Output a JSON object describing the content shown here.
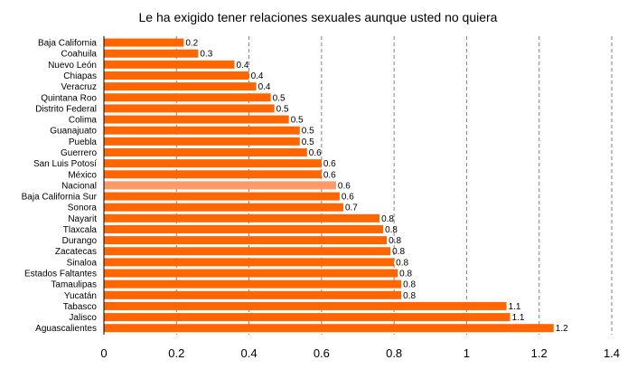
{
  "chart_data": {
    "type": "bar",
    "orientation": "horizontal",
    "title": "Le ha exigido tener relaciones sexuales aunque usted no quiera",
    "categories": [
      "Baja California",
      "Coahuila",
      "Nuevo León",
      "Chiapas",
      "Veracruz",
      "Quintana Roo",
      "Distrito Federal",
      "Colima",
      "Guanajuato",
      "Puebla",
      "Guerrero",
      "San Luis Potosí",
      "México",
      "Nacional",
      "Baja California Sur",
      "Sonora",
      "Nayarit",
      "Tlaxcala",
      "Durango",
      "Zacatecas",
      "Sinaloa",
      "Estados Faltantes",
      "Tamaulipas",
      "Yucatán",
      "Tabasco",
      "Jalisco",
      "Aguascalientes"
    ],
    "values": [
      0.22,
      0.26,
      0.36,
      0.4,
      0.42,
      0.46,
      0.47,
      0.51,
      0.54,
      0.54,
      0.56,
      0.6,
      0.6,
      0.64,
      0.65,
      0.66,
      0.76,
      0.77,
      0.78,
      0.79,
      0.8,
      0.81,
      0.82,
      0.82,
      1.11,
      1.12,
      1.24
    ],
    "value_labels": [
      "0.2",
      "0.3",
      "0.4",
      "0.4",
      "0.4",
      "0.5",
      "0.5",
      "0.5",
      "0.5",
      "0.5",
      "0.6",
      "0.6",
      "0.6",
      "0.6",
      "0.6",
      "0.7",
      "0.8",
      "0.8",
      "0.8",
      "0.8",
      "0.8",
      "0.8",
      "0.8",
      "0.8",
      "1.1",
      "1.1",
      "1.2"
    ],
    "highlight_category": "Nacional",
    "xlim": [
      0,
      1.4
    ],
    "xticks": [
      "0",
      "0.2",
      "0.4",
      "0.6",
      "0.8",
      "1",
      "1.2",
      "1.4"
    ],
    "grid": "vertical dashed",
    "colors": {
      "bar": "#ff6600",
      "highlight": "#ff9966",
      "grid": "#808080",
      "axis": "#000000"
    }
  }
}
